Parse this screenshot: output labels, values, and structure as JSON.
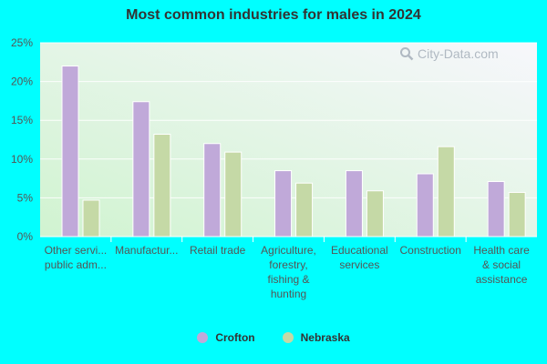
{
  "chart_data": {
    "type": "bar",
    "title": "Most common industries for males in 2024",
    "xlabel": "",
    "ylabel": "",
    "ylim": [
      0,
      25
    ],
    "yticks": [
      "0%",
      "5%",
      "10%",
      "15%",
      "20%",
      "25%"
    ],
    "ytick_values": [
      0,
      5,
      10,
      15,
      20,
      25
    ],
    "grid": true,
    "legend_position": "bottom",
    "categories": [
      [
        "Other servi...",
        "public adm..."
      ],
      [
        "Manufactur..."
      ],
      [
        "Retail trade"
      ],
      [
        "Agriculture,",
        "forestry,",
        "fishing &",
        "hunting"
      ],
      [
        "Educational",
        "services"
      ],
      [
        "Construction"
      ],
      [
        "Health care",
        "& social",
        "assistance"
      ]
    ],
    "series": [
      {
        "name": "Crofton",
        "color": "#c0a9d9",
        "values": [
          22.0,
          17.4,
          12.0,
          8.5,
          8.5,
          8.1,
          7.1
        ]
      },
      {
        "name": "Nebraska",
        "color": "#c5d9a6",
        "values": [
          4.7,
          13.2,
          10.9,
          6.9,
          5.9,
          11.6,
          5.7
        ]
      }
    ]
  },
  "watermark": {
    "text": "City-Data.com",
    "icon": "magnifier-icon"
  },
  "colors": {
    "background": "#00ffff",
    "plot_bg_top": "#f5f5fb",
    "plot_bg_bottom": "#d6f5d6"
  }
}
